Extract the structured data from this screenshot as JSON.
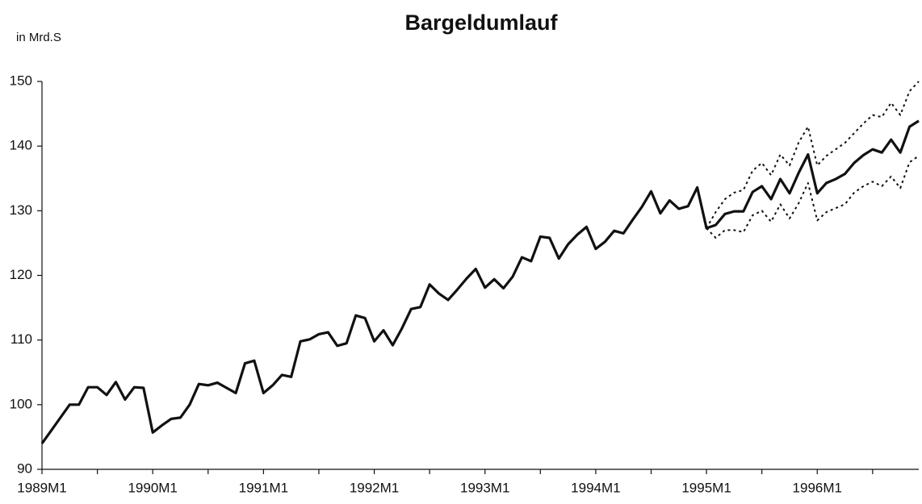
{
  "chart_data": {
    "type": "line",
    "title": "Bargeldumlauf",
    "ylabel": "in Mrd.S",
    "categories": [
      "1989M1",
      null,
      null,
      null,
      null,
      null,
      null,
      null,
      null,
      null,
      null,
      null,
      "1990M1",
      null,
      null,
      null,
      null,
      null,
      null,
      null,
      null,
      null,
      null,
      null,
      "1991M1",
      null,
      null,
      null,
      null,
      null,
      null,
      null,
      null,
      null,
      null,
      null,
      "1992M1",
      null,
      null,
      null,
      null,
      null,
      null,
      null,
      null,
      null,
      null,
      null,
      "1993M1",
      null,
      null,
      null,
      null,
      null,
      null,
      null,
      null,
      null,
      null,
      null,
      "1994M1",
      null,
      null,
      null,
      null,
      null,
      null,
      null,
      null,
      null,
      null,
      null,
      "1995M1",
      null,
      null,
      null,
      null,
      null,
      null,
      null,
      null,
      null,
      null,
      null,
      "1996M1",
      null,
      null,
      null,
      null,
      null,
      null,
      null,
      null,
      null,
      null,
      null
    ],
    "series": [
      {
        "color": "#111111",
        "style": "solid",
        "values": [
          94,
          96,
          98,
          100,
          100,
          102.7,
          102.7,
          101.5,
          103.5,
          100.8,
          102.7,
          102.6,
          95.7,
          96.8,
          97.8,
          98,
          100,
          103.2,
          103,
          103.4,
          102.6,
          101.8,
          106.4,
          106.8,
          101.8,
          103,
          104.6,
          104.3,
          109.8,
          110.1,
          110.9,
          111.2,
          109.1,
          109.5,
          113.8,
          113.4,
          109.8,
          111.5,
          109.2,
          111.8,
          114.8,
          115.1,
          118.6,
          117.2,
          116.2,
          117.8,
          119.5,
          121,
          118.1,
          119.4,
          118,
          119.8,
          122.8,
          122.2,
          126,
          125.8,
          122.6,
          124.8,
          126.3,
          127.5,
          124.1,
          125.2,
          126.9,
          126.5,
          128.6,
          130.6,
          133,
          129.6,
          131.6,
          130.3,
          130.7,
          133.6,
          127.3,
          127.8,
          129.5,
          129.9,
          129.9,
          132.9,
          133.8,
          131.8,
          134.9,
          132.7,
          135.9,
          138.7,
          132.7,
          134.3,
          134.9,
          135.7,
          137.4,
          138.6,
          139.5,
          139,
          141,
          139,
          143,
          143.9
        ]
      },
      {
        "color": "#111111",
        "style": "dotted",
        "values": [
          null,
          null,
          null,
          null,
          null,
          null,
          null,
          null,
          null,
          null,
          null,
          null,
          null,
          null,
          null,
          null,
          null,
          null,
          null,
          null,
          null,
          null,
          null,
          null,
          null,
          null,
          null,
          null,
          null,
          null,
          null,
          null,
          null,
          null,
          null,
          null,
          null,
          null,
          null,
          null,
          null,
          null,
          null,
          null,
          null,
          null,
          null,
          null,
          null,
          null,
          null,
          null,
          null,
          null,
          null,
          null,
          null,
          null,
          null,
          null,
          null,
          null,
          null,
          null,
          null,
          null,
          null,
          null,
          null,
          null,
          null,
          null,
          127.3,
          129.8,
          131.8,
          132.8,
          133.2,
          136.2,
          137.4,
          135.5,
          138.7,
          137,
          140.6,
          143,
          137,
          138.5,
          139.5,
          140.5,
          142,
          143.5,
          144.8,
          144.5,
          146.7,
          144.8,
          148.5,
          150
        ]
      },
      {
        "color": "#111111",
        "style": "dotted",
        "values": [
          null,
          null,
          null,
          null,
          null,
          null,
          null,
          null,
          null,
          null,
          null,
          null,
          null,
          null,
          null,
          null,
          null,
          null,
          null,
          null,
          null,
          null,
          null,
          null,
          null,
          null,
          null,
          null,
          null,
          null,
          null,
          null,
          null,
          null,
          null,
          null,
          null,
          null,
          null,
          null,
          null,
          null,
          null,
          null,
          null,
          null,
          null,
          null,
          null,
          null,
          null,
          null,
          null,
          null,
          null,
          null,
          null,
          null,
          null,
          null,
          null,
          null,
          null,
          null,
          null,
          null,
          null,
          null,
          null,
          null,
          null,
          null,
          127.3,
          125.8,
          127,
          127,
          126.7,
          129.3,
          130,
          128.3,
          131,
          128.8,
          131.2,
          134.3,
          128.5,
          129.8,
          130.4,
          131,
          132.8,
          133.8,
          134.5,
          133.8,
          135.3,
          133.5,
          137.5,
          138.5
        ]
      }
    ],
    "ylim": [
      90,
      150
    ],
    "yticks": [
      90,
      100,
      110,
      120,
      130,
      140,
      150
    ]
  }
}
